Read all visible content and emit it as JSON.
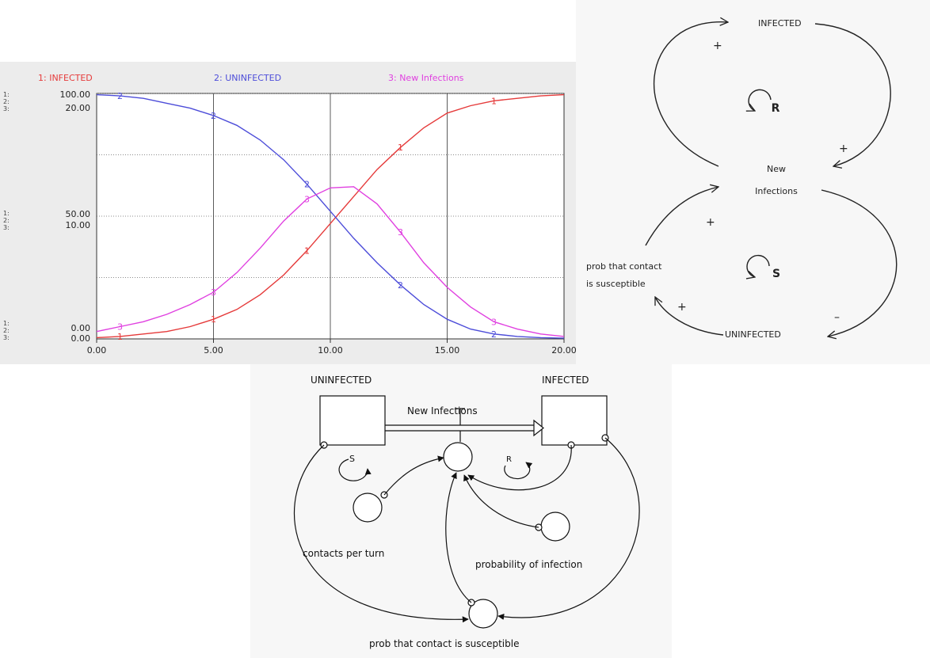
{
  "graph": {
    "legend": [
      {
        "label": "1: INFECTED",
        "color": "#e53a3a"
      },
      {
        "label": "2: UNINFECTED",
        "color": "#4d4dd9"
      },
      {
        "label": "3: New Infections",
        "color": "#e040e0"
      }
    ],
    "left_axis_labels": {
      "top_primary": "100.00",
      "top_secondary": "20.00",
      "mid_primary": "50.00",
      "mid_secondary": "10.00",
      "bottom_primary": "0.00",
      "bottom_secondary": "0.00"
    },
    "chart_data": {
      "type": "line",
      "x_ticks": [
        "0.00",
        "5.00",
        "10.00",
        "15.00",
        "20.00"
      ],
      "xlim": [
        0,
        20
      ],
      "ylim_population": [
        0,
        100
      ],
      "ylim_flow": [
        0,
        20
      ],
      "grid": true,
      "series": [
        {
          "label_marker": "1",
          "color": "#e53a3a",
          "axis": "population",
          "x": [
            0,
            1,
            2,
            3,
            4,
            5,
            6,
            7,
            8,
            9,
            10,
            11,
            12,
            13,
            14,
            15,
            16,
            17,
            18,
            19,
            20
          ],
          "values": [
            0.5,
            1,
            2,
            3,
            5,
            8,
            12,
            18,
            26,
            36,
            47,
            58,
            69,
            78,
            86,
            92,
            95,
            97,
            98,
            99,
            99.5
          ]
        },
        {
          "label_marker": "2",
          "color": "#4d4dd9",
          "axis": "population",
          "x": [
            0,
            1,
            2,
            3,
            4,
            5,
            6,
            7,
            8,
            9,
            10,
            11,
            12,
            13,
            14,
            15,
            16,
            17,
            18,
            19,
            20
          ],
          "values": [
            99.5,
            99,
            98,
            96,
            94,
            91,
            87,
            81,
            73,
            63,
            52,
            41,
            31,
            22,
            14,
            8,
            4,
            2,
            1,
            0.5,
            0.3
          ]
        },
        {
          "label_marker": "3",
          "color": "#e040e0",
          "axis": "flow",
          "x": [
            0,
            1,
            2,
            3,
            4,
            5,
            6,
            7,
            8,
            9,
            10,
            11,
            12,
            13,
            14,
            15,
            16,
            17,
            18,
            19,
            20
          ],
          "values": [
            0.6,
            1.0,
            1.4,
            2.0,
            2.8,
            3.8,
            5.4,
            7.4,
            9.6,
            11.4,
            12.3,
            12.4,
            11.0,
            8.7,
            6.2,
            4.2,
            2.6,
            1.4,
            0.8,
            0.4,
            0.2
          ]
        }
      ]
    }
  },
  "loop_diagram": {
    "infected": "INFECTED",
    "new_infections_line1": "New",
    "new_infections_line2": "Infections",
    "uninfected": "UNINFECTED",
    "prob_line1": "prob that contact",
    "prob_line2": "is susceptible",
    "loop_r": "R",
    "loop_s": "S",
    "plus": "+",
    "minus": "–"
  },
  "flow_diagram": {
    "uninfected": "UNINFECTED",
    "infected": "INFECTED",
    "new_infections": "New Infections",
    "contacts_per_turn": "contacts per turn",
    "probability_of_infection": "probability of infection",
    "prob_contact_susceptible": "prob that contact is susceptible",
    "loop_s": "S",
    "loop_r": "R"
  }
}
